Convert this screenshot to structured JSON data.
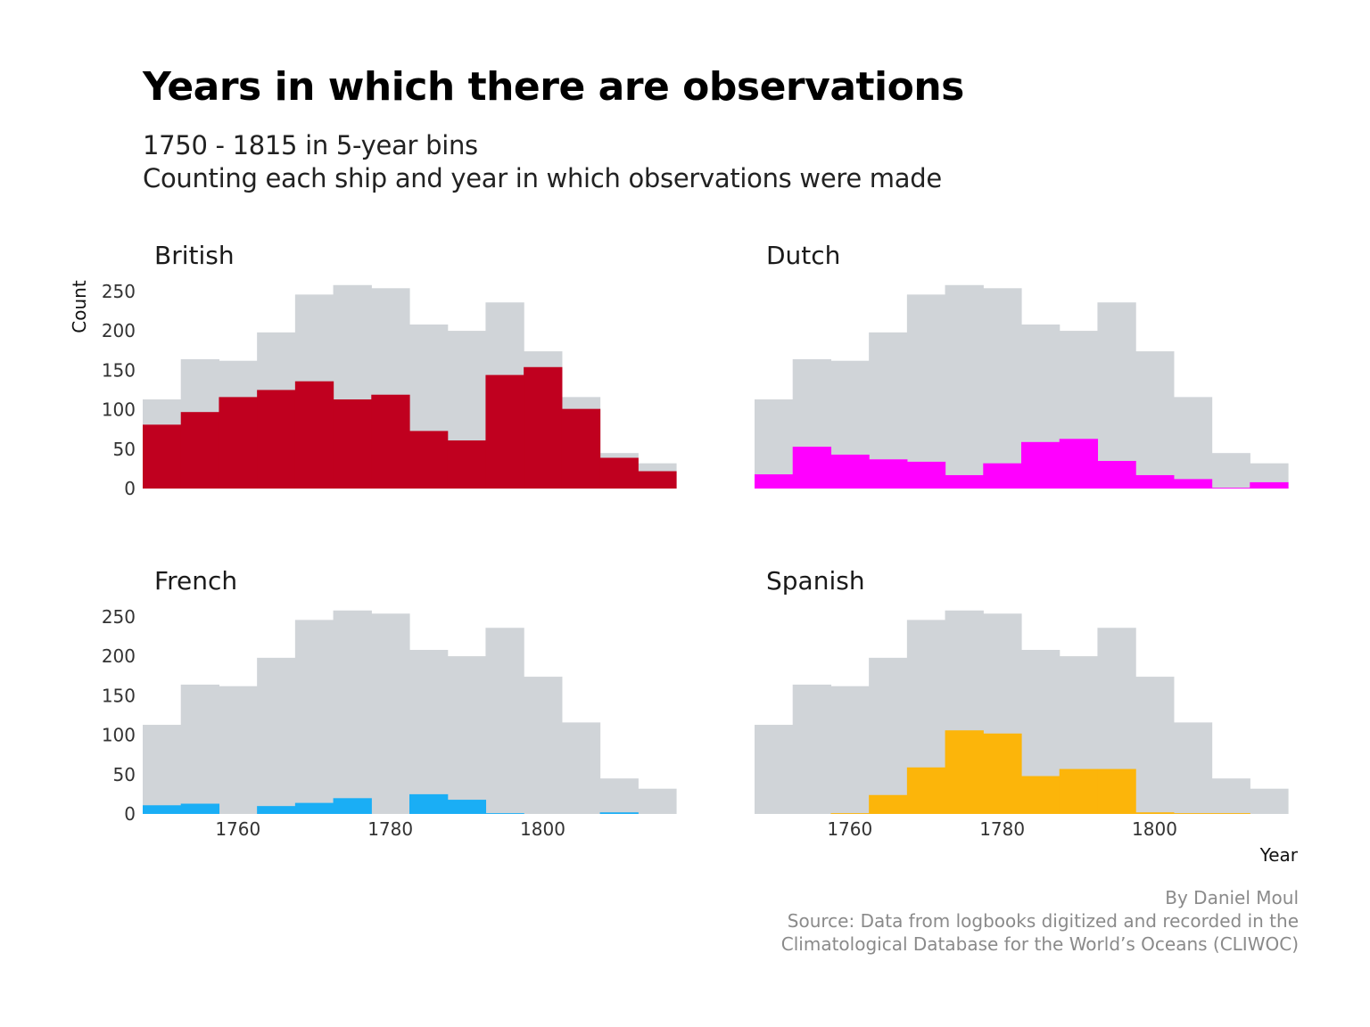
{
  "title": "Years in which there are observations",
  "subtitle_lines": [
    "1750 - 1815 in 5-year bins",
    "Counting each ship and year in which observations were made"
  ],
  "caption_lines": [
    "By Daniel Moul",
    "Source: Data from logbooks digitized and recorded in the",
    "Climatological Database for the World’s Oceans (CLIWOC)"
  ],
  "chart_data": {
    "type": "bar",
    "subtype": "faceted histogram with total background",
    "xlabel": "Year",
    "ylabel": "Count",
    "bin_width": 5,
    "x": [
      1750,
      1755,
      1760,
      1765,
      1770,
      1775,
      1780,
      1785,
      1790,
      1795,
      1800,
      1805,
      1810,
      1815
    ],
    "xlim": [
      1747.5,
      1817.5
    ],
    "ylim": [
      0,
      260
    ],
    "x_ticks": [
      1760,
      1780,
      1800
    ],
    "y_ticks": [
      0,
      50,
      100,
      150,
      200,
      250
    ],
    "background_total": {
      "color": "#d0d4d8",
      "values": [
        113,
        164,
        162,
        198,
        246,
        258,
        254,
        208,
        200,
        236,
        174,
        116,
        45,
        32
      ]
    },
    "facets": [
      {
        "name": "British",
        "color": "#c0001f",
        "values": [
          81,
          97,
          116,
          125,
          136,
          113,
          119,
          73,
          61,
          144,
          154,
          101,
          39,
          22
        ]
      },
      {
        "name": "Dutch",
        "color": "#ff00ff",
        "values": [
          18,
          53,
          43,
          37,
          34,
          17,
          32,
          59,
          63,
          35,
          17,
          12,
          1,
          8
        ]
      },
      {
        "name": "French",
        "color": "#1aaef5",
        "values": [
          11,
          13,
          0,
          10,
          14,
          20,
          0,
          25,
          18,
          1,
          0,
          0,
          2,
          0
        ]
      },
      {
        "name": "Spanish",
        "color": "#fcb50a",
        "values": [
          0,
          0,
          1,
          24,
          59,
          106,
          102,
          48,
          57,
          57,
          2,
          1,
          1,
          0
        ]
      }
    ]
  }
}
